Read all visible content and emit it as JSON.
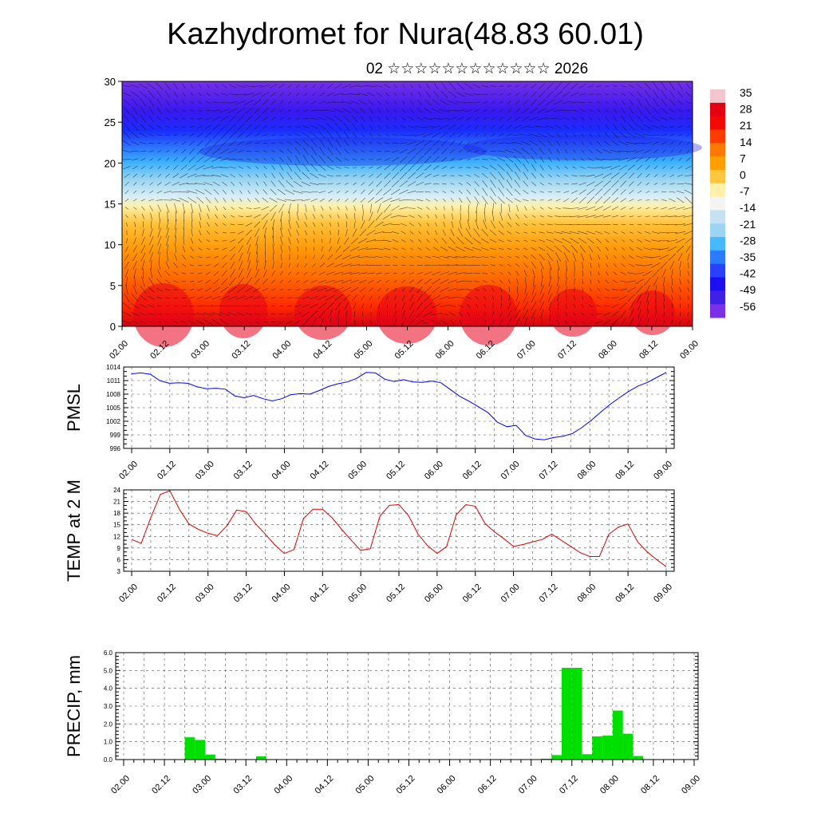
{
  "title": "Kazhydromet for Nura(48.83 60.01)",
  "subtitle": "02 ☆☆☆☆☆☆☆☆☆☆☆☆ 2026",
  "time_ticks": [
    "02.00",
    "02.12",
    "03.00",
    "03.12",
    "04.00",
    "04.12",
    "05.00",
    "05.12",
    "06.00",
    "06.12",
    "07.00",
    "07.12",
    "08.00",
    "08.12",
    "09.00"
  ],
  "chart_data": [
    {
      "type": "heatmap",
      "description_kind": "vertical cross-section (height 0-30) with temperature shading and wind vectors",
      "ylim": [
        0,
        30
      ],
      "yticks": [
        0,
        5,
        10,
        15,
        20,
        25,
        30
      ],
      "colorbar_labels": [
        "35",
        "28",
        "21",
        "14",
        "7",
        "0",
        "-7",
        "-14",
        "-21",
        "-28",
        "-35",
        "-42",
        "-49",
        "-56"
      ],
      "colors": [
        "#f0e6f0",
        "#e8002a",
        "#ff5a00",
        "#ffb400",
        "#fff0a0",
        "#b8e4f0",
        "#2ab4ff",
        "#1a2aff",
        "#7a28e8"
      ]
    },
    {
      "type": "line",
      "ylabel": "PMSL",
      "ylim": [
        996,
        1014
      ],
      "yticks": [
        996,
        999,
        1002,
        1005,
        1008,
        1011,
        1014
      ],
      "series": [
        {
          "color": "#0000ff",
          "values": [
            1012.5,
            1012.7,
            1012.4,
            1011.0,
            1010.4,
            1010.5,
            1010.4,
            1009.6,
            1009.2,
            1009.3,
            1009.1,
            1007.6,
            1007.2,
            1007.7,
            1007.0,
            1006.5,
            1007.0,
            1007.9,
            1008.1,
            1008.0,
            1008.8,
            1009.7,
            1010.3,
            1010.7,
            1011.5,
            1012.8,
            1012.7,
            1011.3,
            1010.8,
            1011.2,
            1010.7,
            1010.6,
            1010.9,
            1010.5,
            1009.0,
            1007.5,
            1006.4,
            1005.2,
            1003.9,
            1001.8,
            1000.8,
            1001.1,
            998.9,
            998.1,
            997.9,
            998.4,
            998.7,
            999.3,
            1000.6,
            1002.2,
            1004.0,
            1005.7,
            1007.2,
            1008.6,
            1009.8,
            1010.6,
            1011.7,
            1012.8
          ]
        }
      ]
    },
    {
      "type": "line",
      "ylabel": "TEMP at 2 M",
      "ylim": [
        3,
        24
      ],
      "yticks": [
        3,
        6,
        9,
        12,
        15,
        18,
        21,
        24
      ],
      "series": [
        {
          "color": "#e00000",
          "values": [
            11.2,
            10.2,
            16.8,
            22.8,
            23.8,
            19.0,
            15.2,
            13.8,
            12.8,
            12.2,
            14.8,
            18.8,
            18.4,
            15.2,
            12.6,
            9.8,
            7.6,
            8.6,
            16.6,
            19.0,
            19.0,
            16.8,
            13.8,
            11.0,
            8.4,
            8.8,
            17.2,
            20.0,
            20.2,
            17.4,
            12.6,
            9.6,
            7.6,
            9.4,
            17.6,
            20.2,
            19.8,
            15.4,
            13.2,
            11.4,
            9.4,
            9.9,
            10.6,
            11.2,
            12.6,
            11.0,
            9.4,
            7.8,
            6.8,
            6.8,
            12.6,
            14.4,
            15.2,
            10.6,
            8.0,
            6.0,
            4.2
          ]
        }
      ]
    },
    {
      "type": "bar",
      "ylabel": "PRECIP, mm",
      "ylim": [
        0,
        6
      ],
      "yticks": [
        "0.0",
        "1.0",
        "2.0",
        "3.0",
        "4.0",
        "5.0",
        "6.0"
      ],
      "color": "#00e000",
      "values": [
        0,
        0,
        0,
        0,
        0,
        0,
        0,
        0,
        0,
        0,
        0,
        0,
        0,
        0,
        0,
        0,
        0,
        0,
        0,
        0,
        0,
        0,
        0,
        0,
        0,
        0,
        0,
        0,
        0,
        0,
        0,
        0,
        0,
        0,
        0,
        0,
        0,
        0,
        0,
        0,
        0,
        0,
        0,
        0,
        0,
        0,
        0,
        0,
        0,
        0,
        0,
        0,
        0,
        0,
        0,
        0
      ],
      "nonzero": [
        [
          6,
          1.25
        ],
        [
          7,
          1.1
        ],
        [
          8,
          0.28
        ],
        [
          9,
          0.05
        ],
        [
          13,
          0.18
        ],
        [
          41,
          0.05
        ],
        [
          42,
          0.25
        ],
        [
          43,
          5.15
        ],
        [
          44,
          5.15
        ],
        [
          45,
          0.3
        ],
        [
          46,
          1.3
        ],
        [
          47,
          1.35
        ],
        [
          48,
          2.75
        ],
        [
          49,
          1.45
        ],
        [
          50,
          0.2
        ]
      ]
    }
  ]
}
